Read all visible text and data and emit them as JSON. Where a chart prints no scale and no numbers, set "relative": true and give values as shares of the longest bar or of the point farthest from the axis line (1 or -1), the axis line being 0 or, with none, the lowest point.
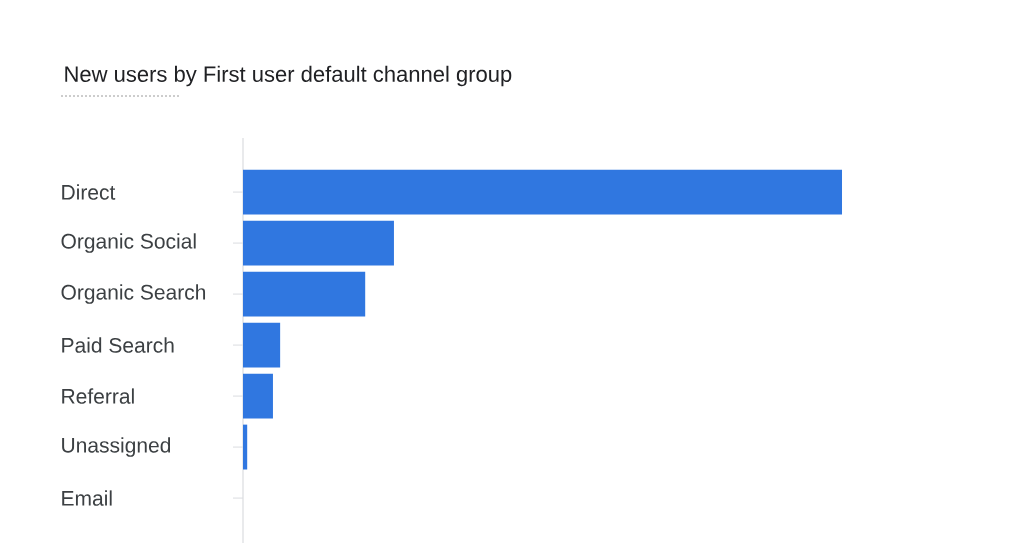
{
  "chart_data": {
    "type": "bar",
    "orientation": "horizontal",
    "relative": true,
    "title": "New users by First user default channel group",
    "categories": [
      "Direct",
      "Organic Social",
      "Organic Search",
      "Paid Search",
      "Referral",
      "Unassigned",
      "Email"
    ],
    "values": [
      1,
      0.252,
      0.204,
      0.062,
      0.05,
      0.007,
      0
    ],
    "color": "#3077e0"
  }
}
